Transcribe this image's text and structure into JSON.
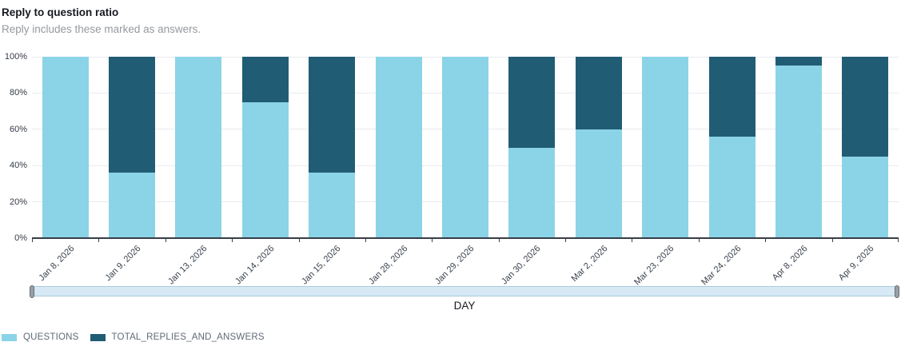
{
  "header": {
    "title": "Reply to question ratio",
    "subtitle": "Reply includes these marked as answers."
  },
  "chart_data": {
    "type": "bar",
    "variant": "100-percent-stacked-vertical",
    "categories": [
      "Jan 8, 2026",
      "Jan 9, 2026",
      "Jan 13, 2026",
      "Jan 14, 2026",
      "Jan 15, 2026",
      "Jan 28, 2026",
      "Jan 29, 2026",
      "Jan 30, 2026",
      "Mar 2, 2026",
      "Mar 23, 2026",
      "Mar 24, 2026",
      "Apr 8, 2026",
      "Apr 9, 2026"
    ],
    "series": [
      {
        "name": "QUESTIONS",
        "color": "#8bd4e7",
        "values": [
          100,
          36,
          100,
          75,
          36,
          100,
          100,
          50,
          60,
          100,
          56,
          95,
          45
        ]
      },
      {
        "name": "TOTAL_REPLIES_AND_ANSWERS",
        "color": "#215c75",
        "values": [
          0,
          64,
          0,
          25,
          64,
          0,
          0,
          50,
          40,
          0,
          44,
          5,
          55
        ]
      }
    ],
    "title": "Reply to question ratio",
    "xlabel": "DAY",
    "ylabel": "",
    "ylim": [
      0,
      100
    ],
    "y_ticks": [
      "0%",
      "20%",
      "40%",
      "60%",
      "80%",
      "100%"
    ],
    "grid": true,
    "legend_position": "bottom-left"
  },
  "axis": {
    "x_title": "DAY"
  },
  "legend": {
    "items": [
      {
        "label": "QUESTIONS",
        "color": "#8bd4e7"
      },
      {
        "label": "TOTAL_REPLIES_AND_ANSWERS",
        "color": "#215c75"
      }
    ]
  },
  "colors": {
    "questions": "#8bd4e7",
    "replies": "#215c75",
    "grid": "#e9eaed",
    "axis": "#383e47",
    "slider_fill": "#d6e9f4",
    "slider_border": "#a9cbde"
  }
}
